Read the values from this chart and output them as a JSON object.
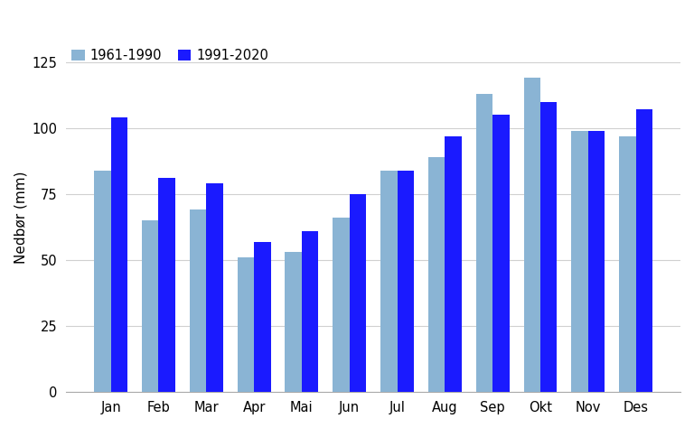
{
  "months": [
    "Jan",
    "Feb",
    "Mar",
    "Apr",
    "Mai",
    "Jun",
    "Jul",
    "Aug",
    "Sep",
    "Okt",
    "Nov",
    "Des"
  ],
  "values_1961_1990": [
    84,
    65,
    69,
    51,
    53,
    66,
    84,
    89,
    113,
    119,
    99,
    97
  ],
  "values_1991_2020": [
    104,
    81,
    79,
    57,
    61,
    75,
    84,
    97,
    105,
    110,
    99,
    107
  ],
  "color_old": "#8ab4d4",
  "color_new": "#1a1aff",
  "ylabel": "Nedbør (mm)",
  "legend_old": "1961-1990",
  "legend_new": "1991-2020",
  "ylim": [
    0,
    132
  ],
  "yticks": [
    0,
    25,
    50,
    75,
    100,
    125
  ],
  "bar_width": 0.35,
  "background_color": "#ffffff",
  "grid_color": "#d0d0d0"
}
